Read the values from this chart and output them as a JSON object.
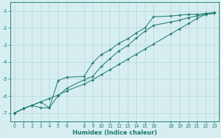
{
  "xlabel": "Humidex (Indice chaleur)",
  "bg_color": "#d6eef0",
  "grid_color": "#b8d8dc",
  "line_color": "#1a7a6e",
  "xlim": [
    -0.5,
    23.5
  ],
  "ylim": [
    -7.5,
    -0.5
  ],
  "yticks": [
    -7,
    -6,
    -5,
    -4,
    -3,
    -2,
    -1
  ],
  "xticks": [
    0,
    1,
    2,
    3,
    4,
    5,
    6,
    8,
    9,
    10,
    11,
    12,
    13,
    14,
    15,
    16,
    18,
    19,
    20,
    21,
    22,
    23
  ],
  "line1_x": [
    0,
    1,
    2,
    3,
    4,
    5,
    6,
    8,
    9,
    10,
    11,
    12,
    13,
    14,
    15,
    16,
    18,
    19,
    20,
    21,
    22,
    23
  ],
  "line1_y": [
    -7.0,
    -6.75,
    -6.55,
    -6.7,
    -6.7,
    -5.1,
    -4.9,
    -4.85,
    -4.05,
    -3.55,
    -3.3,
    -2.9,
    -2.65,
    -2.3,
    -2.0,
    -1.35,
    -1.3,
    -1.25,
    -1.2,
    -1.2,
    -1.15,
    -1.1
  ],
  "line2_x": [
    0,
    1,
    3,
    4,
    5,
    6,
    8,
    9,
    10,
    11,
    12,
    13,
    14,
    15,
    16,
    18,
    19,
    20,
    21,
    22,
    23
  ],
  "line2_y": [
    -7.0,
    -6.75,
    -6.35,
    -6.7,
    -6.0,
    -5.55,
    -5.05,
    -4.85,
    -4.25,
    -3.8,
    -3.35,
    -3.05,
    -2.6,
    -2.2,
    -1.85,
    -1.65,
    -1.55,
    -1.4,
    -1.3,
    -1.2,
    -1.15
  ],
  "line3_x": [
    0,
    1,
    2,
    3,
    4,
    5,
    6,
    8,
    9,
    10,
    11,
    12,
    13,
    14,
    15,
    16,
    18,
    19,
    20,
    21,
    22,
    23
  ],
  "line3_y": [
    -7.0,
    -6.75,
    -6.55,
    -6.35,
    -6.15,
    -5.95,
    -5.7,
    -5.3,
    -5.05,
    -4.75,
    -4.45,
    -4.15,
    -3.85,
    -3.55,
    -3.25,
    -2.95,
    -2.35,
    -2.05,
    -1.75,
    -1.45,
    -1.2,
    -1.1
  ]
}
